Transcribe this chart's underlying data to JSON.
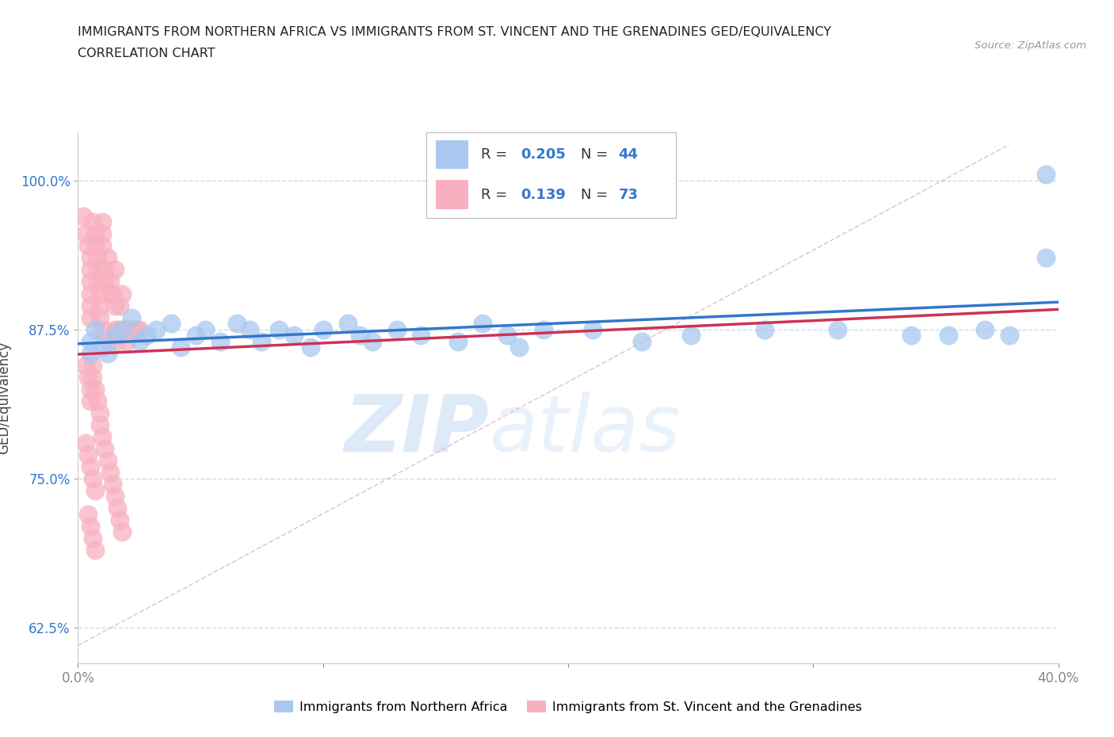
{
  "title_line1": "IMMIGRANTS FROM NORTHERN AFRICA VS IMMIGRANTS FROM ST. VINCENT AND THE GRENADINES GED/EQUIVALENCY",
  "title_line2": "CORRELATION CHART",
  "source": "Source: ZipAtlas.com",
  "ylabel": "GED/Equivalency",
  "xlim": [
    0.0,
    0.4
  ],
  "ylim": [
    0.595,
    1.04
  ],
  "xtick_labels": [
    "0.0%",
    "40.0%"
  ],
  "ytick_vals": [
    0.625,
    0.75,
    0.875,
    1.0
  ],
  "ytick_labels": [
    "62.5%",
    "75.0%",
    "87.5%",
    "100.0%"
  ],
  "blue_color": "#A8C8F0",
  "pink_color": "#F8B0C0",
  "blue_line_color": "#3377CC",
  "pink_line_color": "#CC3355",
  "diag_line_color": "#DDBBCC",
  "R_blue": 0.205,
  "N_blue": 44,
  "R_pink": 0.139,
  "N_pink": 73,
  "legend_label_blue": "Immigrants from Northern Africa",
  "legend_label_pink": "Immigrants from St. Vincent and the Grenadines",
  "watermark_zip": "ZIP",
  "watermark_atlas": "atlas",
  "blue_x": [
    0.005,
    0.007,
    0.012,
    0.015,
    0.018,
    0.022,
    0.025,
    0.028,
    0.032,
    0.038,
    0.042,
    0.048,
    0.052,
    0.058,
    0.065,
    0.07,
    0.075,
    0.082,
    0.088,
    0.095,
    0.1,
    0.11,
    0.115,
    0.12,
    0.13,
    0.14,
    0.155,
    0.165,
    0.175,
    0.18,
    0.19,
    0.21,
    0.23,
    0.25,
    0.28,
    0.31,
    0.34,
    0.355,
    0.37,
    0.38,
    0.005,
    0.01,
    0.395,
    0.395
  ],
  "blue_y": [
    0.865,
    0.875,
    0.855,
    0.87,
    0.875,
    0.885,
    0.865,
    0.87,
    0.875,
    0.88,
    0.86,
    0.87,
    0.875,
    0.865,
    0.88,
    0.875,
    0.865,
    0.875,
    0.87,
    0.86,
    0.875,
    0.88,
    0.87,
    0.865,
    0.875,
    0.87,
    0.865,
    0.88,
    0.87,
    0.86,
    0.875,
    0.875,
    0.865,
    0.87,
    0.875,
    0.875,
    0.87,
    0.87,
    0.875,
    0.87,
    0.855,
    0.86,
    1.005,
    0.935
  ],
  "pink_x": [
    0.002,
    0.003,
    0.004,
    0.005,
    0.005,
    0.005,
    0.005,
    0.005,
    0.005,
    0.006,
    0.007,
    0.007,
    0.008,
    0.008,
    0.008,
    0.009,
    0.009,
    0.009,
    0.01,
    0.01,
    0.01,
    0.01,
    0.011,
    0.011,
    0.012,
    0.012,
    0.013,
    0.013,
    0.014,
    0.015,
    0.015,
    0.015,
    0.016,
    0.016,
    0.017,
    0.018,
    0.018,
    0.019,
    0.02,
    0.02,
    0.021,
    0.022,
    0.023,
    0.024,
    0.025,
    0.003,
    0.004,
    0.005,
    0.005,
    0.006,
    0.006,
    0.007,
    0.008,
    0.009,
    0.009,
    0.01,
    0.011,
    0.012,
    0.013,
    0.014,
    0.015,
    0.016,
    0.017,
    0.018,
    0.003,
    0.004,
    0.005,
    0.006,
    0.007,
    0.004,
    0.005,
    0.006,
    0.007
  ],
  "pink_y": [
    0.97,
    0.955,
    0.945,
    0.935,
    0.925,
    0.915,
    0.905,
    0.895,
    0.885,
    0.965,
    0.955,
    0.945,
    0.935,
    0.925,
    0.915,
    0.905,
    0.895,
    0.885,
    0.965,
    0.955,
    0.945,
    0.875,
    0.925,
    0.915,
    0.935,
    0.865,
    0.915,
    0.905,
    0.905,
    0.925,
    0.895,
    0.875,
    0.875,
    0.865,
    0.895,
    0.905,
    0.875,
    0.875,
    0.875,
    0.865,
    0.875,
    0.875,
    0.875,
    0.875,
    0.875,
    0.845,
    0.835,
    0.825,
    0.815,
    0.845,
    0.835,
    0.825,
    0.815,
    0.805,
    0.795,
    0.785,
    0.775,
    0.765,
    0.755,
    0.745,
    0.735,
    0.725,
    0.715,
    0.705,
    0.78,
    0.77,
    0.76,
    0.75,
    0.74,
    0.72,
    0.71,
    0.7,
    0.69
  ]
}
